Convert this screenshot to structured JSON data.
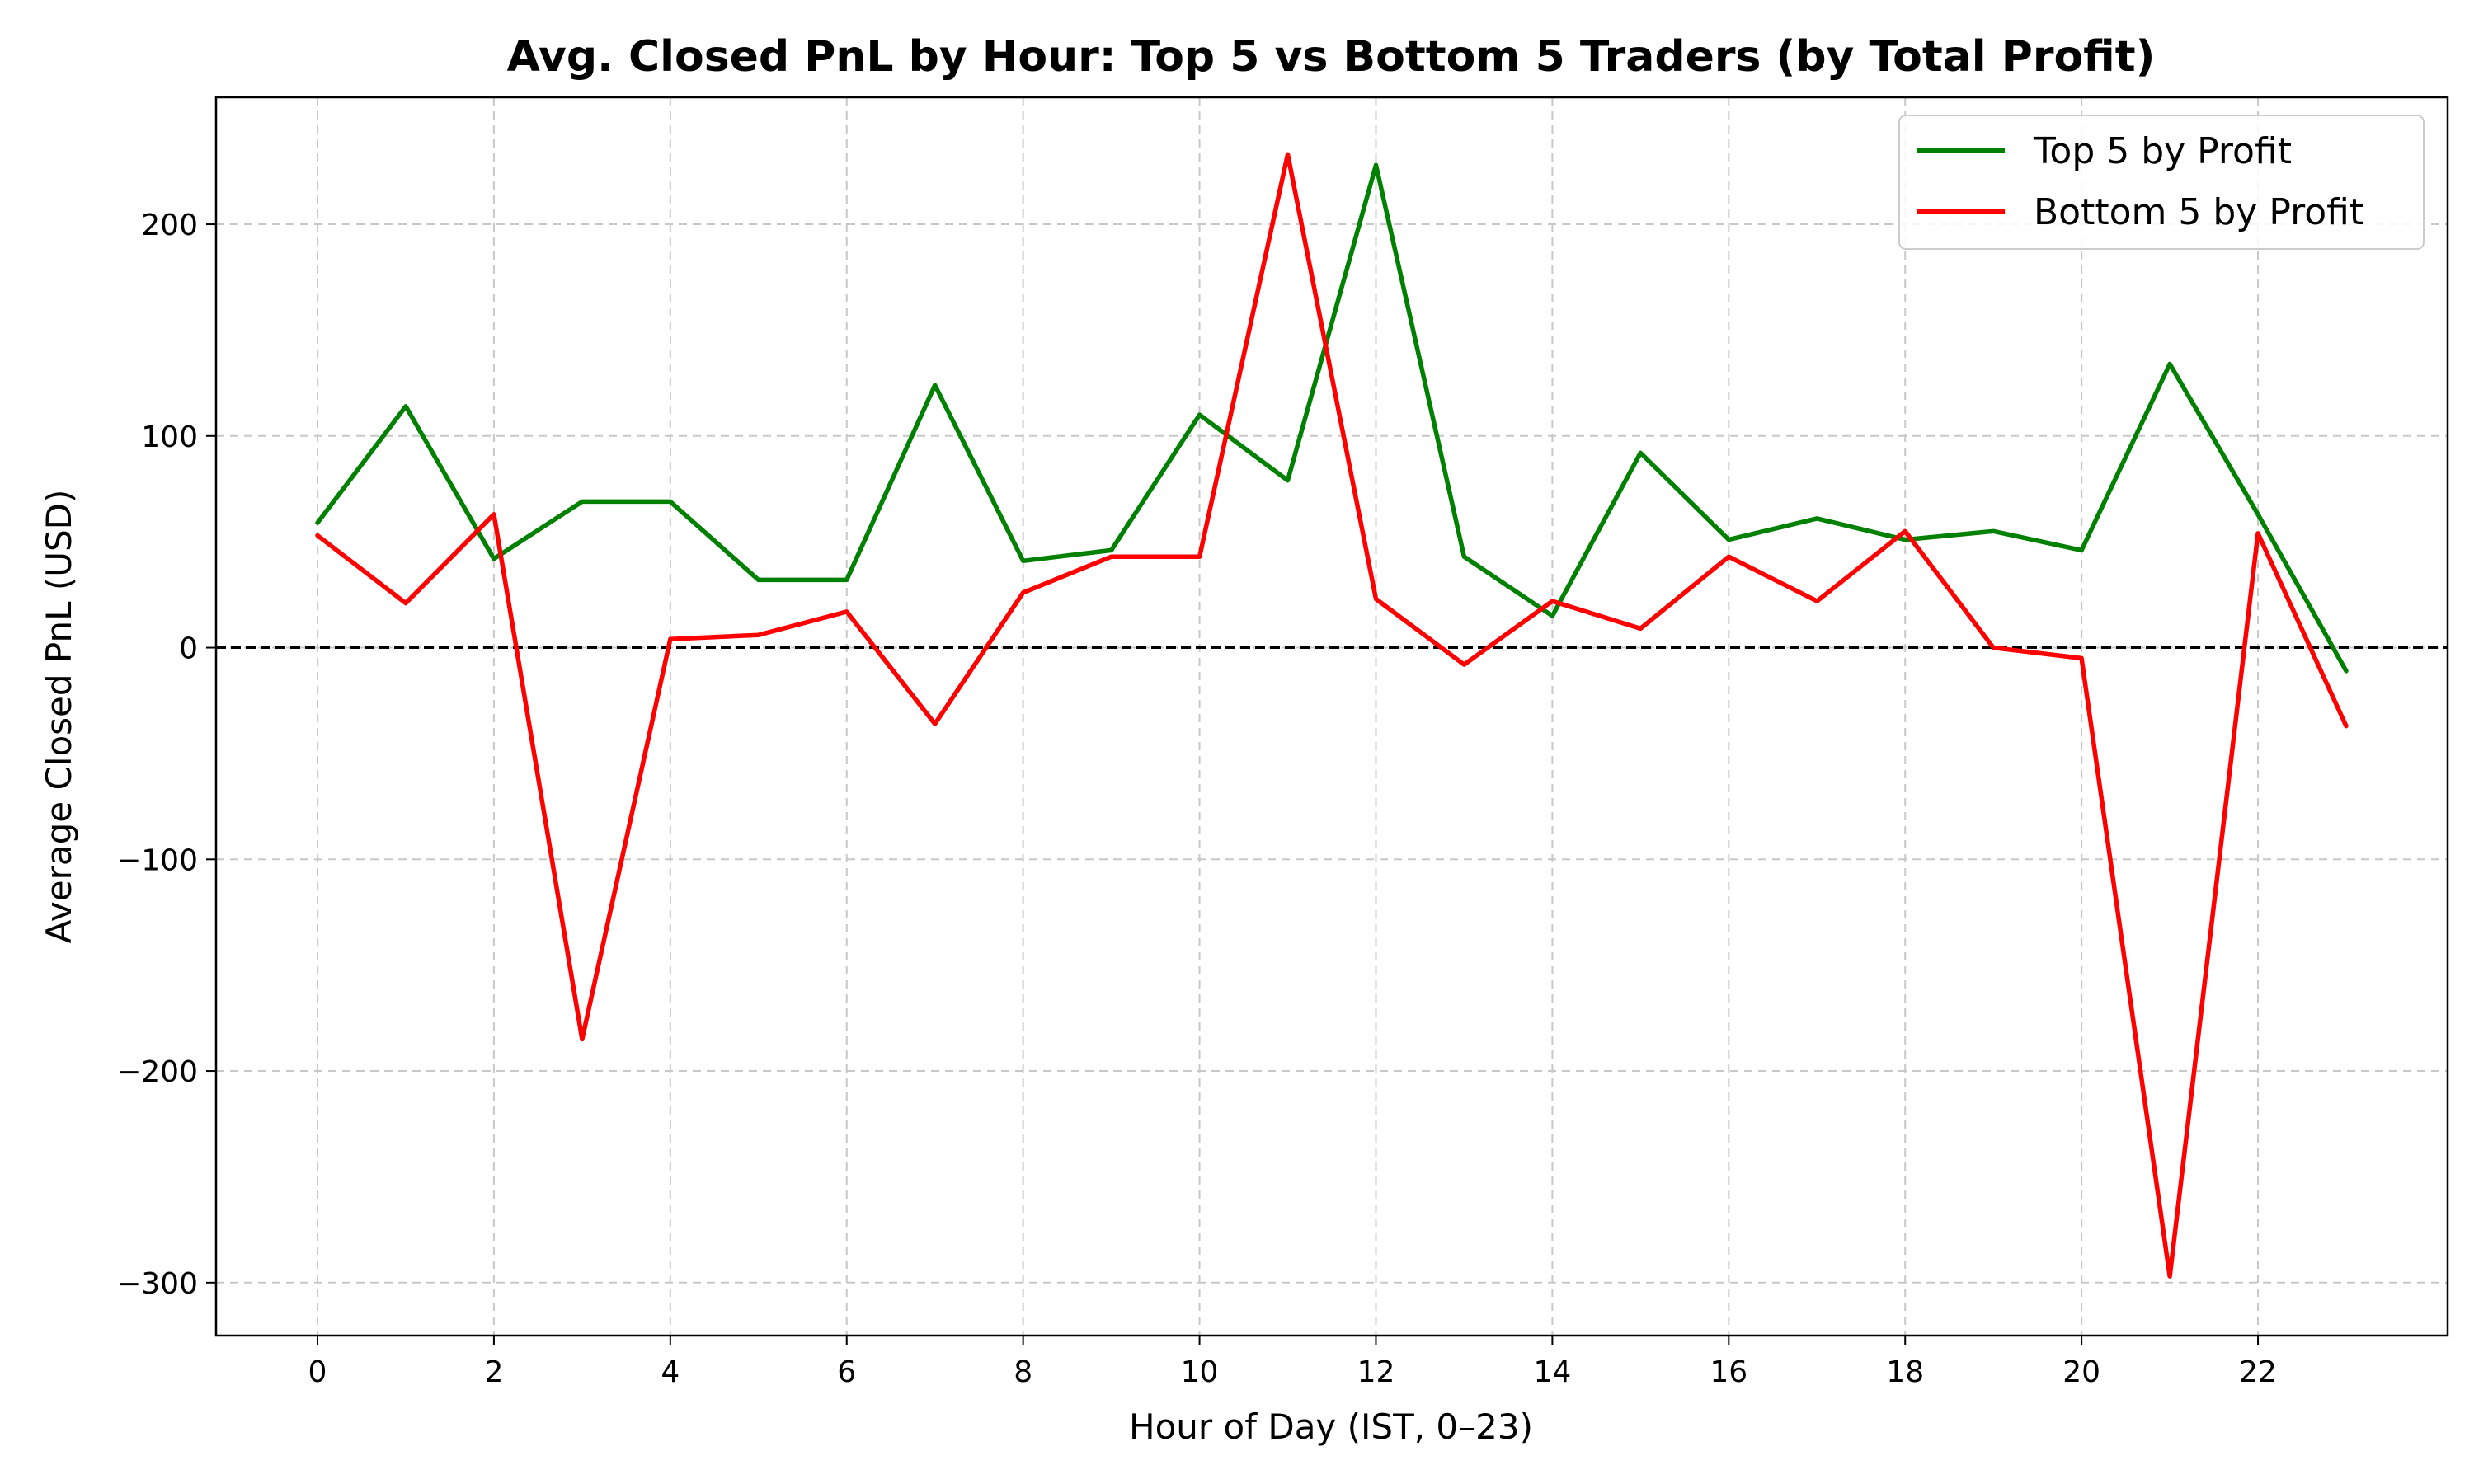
{
  "chart_data": {
    "type": "line",
    "title": "Avg. Closed PnL by Hour: Top 5 vs Bottom 5 Traders (by Total Profit)",
    "xlabel": "Hour of Day (IST, 0–23)",
    "ylabel": "Average Closed PnL (USD)",
    "xlim": [
      -1.15,
      24.15
    ],
    "ylim": [
      -325,
      260
    ],
    "xticks": [
      0,
      2,
      4,
      6,
      8,
      10,
      12,
      14,
      16,
      18,
      20,
      22
    ],
    "xtick_labels": [
      "0",
      "2",
      "4",
      "6",
      "8",
      "10",
      "12",
      "14",
      "16",
      "18",
      "20",
      "22"
    ],
    "yticks": [
      -300,
      -200,
      -100,
      0,
      100,
      200
    ],
    "ytick_labels": [
      "−300",
      "−200",
      "−100",
      "0",
      "100",
      "200"
    ],
    "grid": true,
    "legend_position": "upper right",
    "reference_line_y": 0,
    "x": [
      0,
      1,
      2,
      3,
      4,
      5,
      6,
      7,
      8,
      9,
      10,
      11,
      12,
      13,
      14,
      15,
      16,
      17,
      18,
      19,
      20,
      21,
      22,
      23
    ],
    "series": [
      {
        "name": "Top 5 by Profit",
        "color": "#008000",
        "values": [
          59,
          114,
          42,
          69,
          69,
          32,
          32,
          124,
          41,
          46,
          110,
          79,
          228,
          43,
          15,
          92,
          51,
          61,
          51,
          55,
          46,
          134,
          63,
          -11
        ]
      },
      {
        "name": "Bottom 5 by Profit",
        "color": "#ff0000",
        "values": [
          53,
          21,
          63,
          -185,
          4,
          6,
          17,
          -36,
          26,
          43,
          43,
          233,
          23,
          -8,
          22,
          9,
          43,
          22,
          55,
          0,
          -5,
          -297,
          54,
          -37
        ]
      }
    ]
  }
}
